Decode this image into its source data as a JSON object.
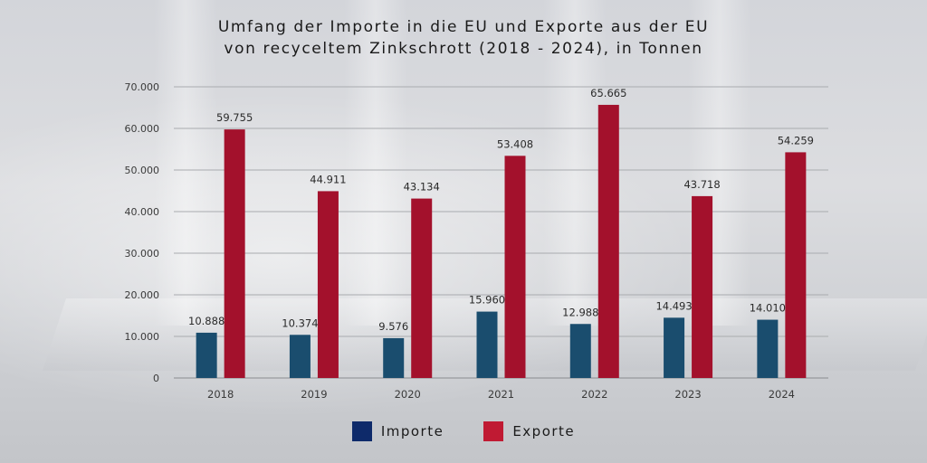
{
  "title_line1": "Umfang der Importe in die EU und Exporte aus der EU",
  "title_line2": "von recyceltem Zinkschrott (2018 - 2024), in Tonnen",
  "colors": {
    "importe": "#1a4d6e",
    "exporte": "#a3112c",
    "legend_importe": "#0e2a6a",
    "legend_exporte": "#c01a33"
  },
  "chart_data": {
    "type": "bar",
    "categories": [
      "2018",
      "2019",
      "2020",
      "2021",
      "2022",
      "2023",
      "2024"
    ],
    "series": [
      {
        "name": "Importe",
        "values": [
          10888,
          10374,
          9576,
          15960,
          12988,
          14493,
          14010
        ],
        "labels": [
          "10.888",
          "10.374",
          "9.576",
          "15.960",
          "12.988",
          "14.493",
          "14.010"
        ]
      },
      {
        "name": "Exporte",
        "values": [
          59755,
          44911,
          43134,
          53408,
          65665,
          43718,
          54259
        ],
        "labels": [
          "59.755",
          "44.911",
          "43.134",
          "53.408",
          "65.665",
          "43.718",
          "54.259"
        ]
      }
    ],
    "ylim": [
      0,
      70000
    ],
    "yticks": [
      0,
      10000,
      20000,
      30000,
      40000,
      50000,
      60000,
      70000
    ],
    "ytick_labels": [
      "0",
      "10.000",
      "20.000",
      "30.000",
      "40.000",
      "50.000",
      "60.000",
      "70.000"
    ],
    "grid": true,
    "legend_position": "bottom"
  }
}
